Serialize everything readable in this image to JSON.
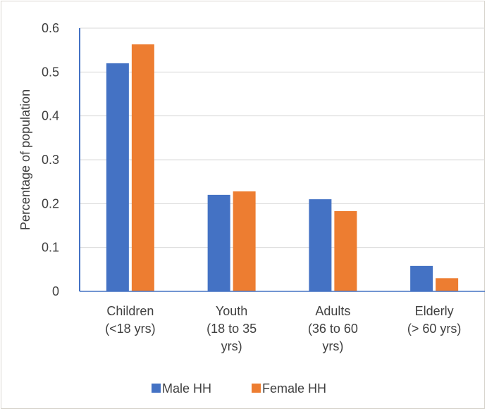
{
  "chart_data": {
    "type": "bar",
    "categories": [
      [
        "Children",
        "(<18 yrs)"
      ],
      [
        "Youth",
        "(18 to 35",
        "yrs)"
      ],
      [
        "Adults",
        "(36 to 60",
        "yrs)"
      ],
      [
        "Elderly",
        "(> 60 yrs)"
      ]
    ],
    "series": [
      {
        "name": "Male HH",
        "values": [
          0.52,
          0.22,
          0.21,
          0.058
        ],
        "color": "#4472c4"
      },
      {
        "name": "Female HH",
        "values": [
          0.563,
          0.228,
          0.183,
          0.03
        ],
        "color": "#ed7d31"
      }
    ],
    "yticks": [
      "0",
      "0.1",
      "0.2",
      "0.3",
      "0.4",
      "0.5",
      "0.6"
    ],
    "ylim": [
      0,
      0.6
    ],
    "ylabel": "Percentage of population",
    "xlabel": "",
    "title": "",
    "grid": true,
    "legend": "bottom"
  }
}
